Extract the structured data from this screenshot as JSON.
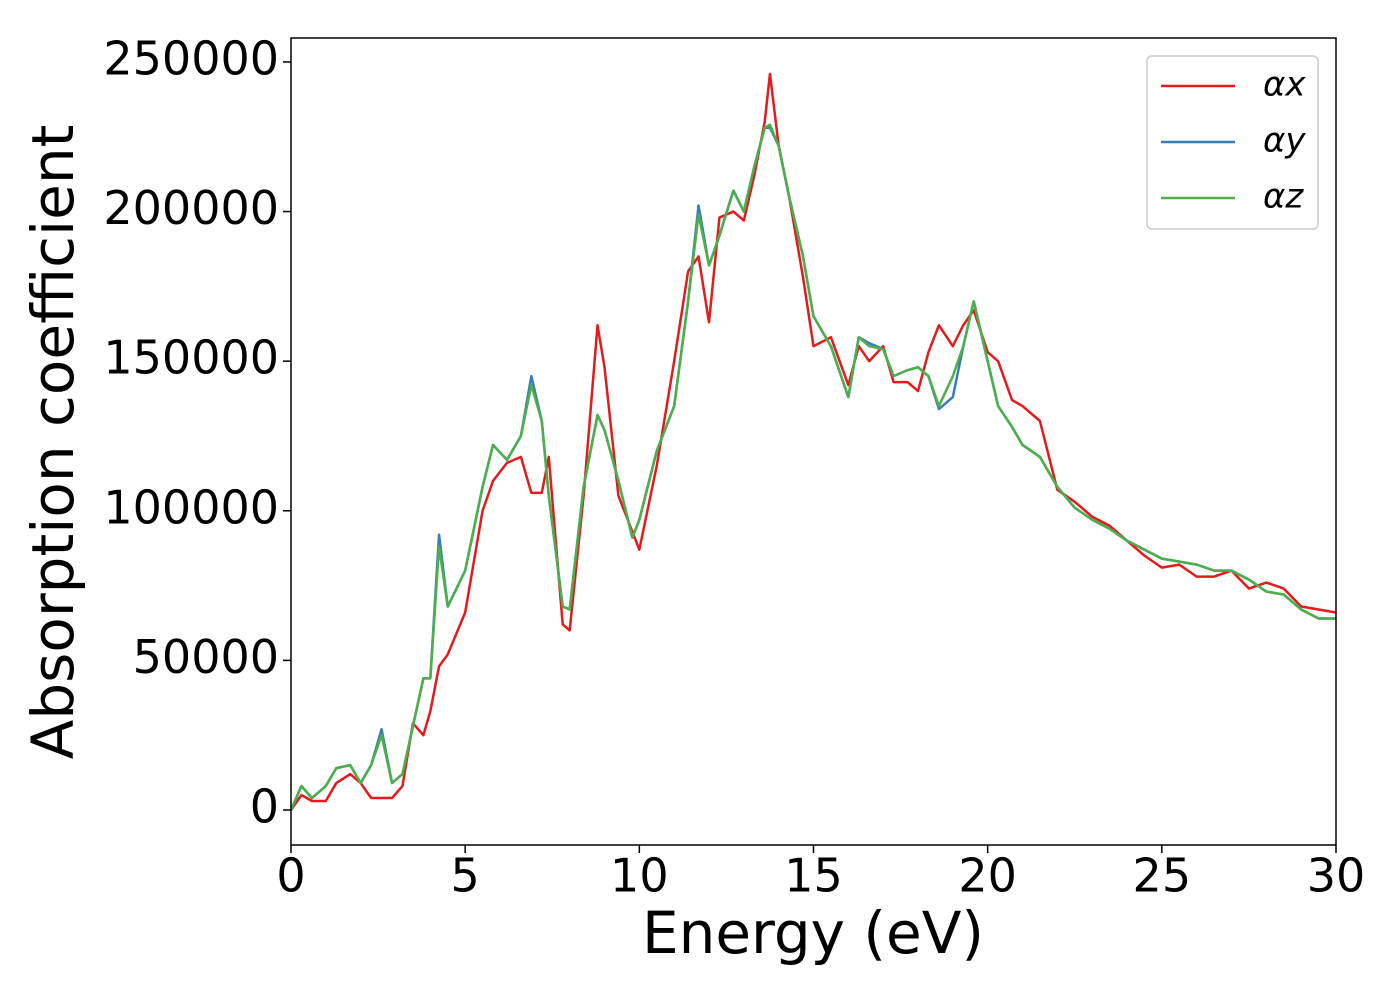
{
  "chart_data": {
    "type": "line",
    "xlabel": "Energy (eV)",
    "ylabel": "Absorption coefficient",
    "x": [
      0,
      0.3,
      0.6,
      1.0,
      1.3,
      1.7,
      2.0,
      2.3,
      2.6,
      2.9,
      3.2,
      3.5,
      3.8,
      4.0,
      4.25,
      4.5,
      5.0,
      5.5,
      5.8,
      6.2,
      6.6,
      6.9,
      7.2,
      7.4,
      7.8,
      8.0,
      8.4,
      8.8,
      9.0,
      9.4,
      9.8,
      10.0,
      10.5,
      11.0,
      11.4,
      11.7,
      12.0,
      12.3,
      12.7,
      13.0,
      13.3,
      13.6,
      13.75,
      14.0,
      14.3,
      14.7,
      15.0,
      15.5,
      16.0,
      16.3,
      16.6,
      17.0,
      17.3,
      17.7,
      18.0,
      18.3,
      18.6,
      19.0,
      19.3,
      19.6,
      20.0,
      20.3,
      20.7,
      21.0,
      21.5,
      22.0,
      22.5,
      23.0,
      23.5,
      24.0,
      24.5,
      25.0,
      25.5,
      26.0,
      26.5,
      27.0,
      27.5,
      28.0,
      28.5,
      29.0,
      29.5,
      30.0
    ],
    "series": [
      {
        "name": "αx",
        "color": "#e41a1c",
        "values": [
          0,
          5000,
          3000,
          3000,
          9000,
          12000,
          9000,
          4000,
          4000,
          4000,
          8000,
          29000,
          25000,
          33000,
          48000,
          52000,
          66000,
          100000,
          110000,
          116000,
          118000,
          106000,
          106000,
          118000,
          62000,
          60000,
          105000,
          162000,
          148000,
          105000,
          93000,
          87000,
          115000,
          150000,
          180000,
          185000,
          163000,
          198000,
          200000,
          197000,
          212000,
          230000,
          246000,
          222000,
          205000,
          178000,
          155000,
          158000,
          142000,
          155000,
          150000,
          155000,
          143000,
          143000,
          140000,
          153000,
          162000,
          155000,
          162000,
          167000,
          153000,
          150000,
          137000,
          135000,
          130000,
          107000,
          103000,
          98000,
          95000,
          90000,
          85000,
          81000,
          82000,
          78000,
          78000,
          80000,
          74000,
          76000,
          74000,
          68000,
          67000,
          66000
        ]
      },
      {
        "name": "αy",
        "color": "#377eb8",
        "values": [
          0,
          8000,
          4000,
          8000,
          14000,
          15000,
          9000,
          15000,
          27000,
          9000,
          12000,
          28000,
          44000,
          44000,
          92000,
          68000,
          80000,
          108000,
          122000,
          117000,
          125000,
          145000,
          130000,
          105000,
          68000,
          67000,
          108000,
          132000,
          127000,
          110000,
          91000,
          97000,
          120000,
          135000,
          170000,
          202000,
          182000,
          192000,
          207000,
          200000,
          215000,
          228000,
          228000,
          222000,
          205000,
          185000,
          165000,
          155000,
          138000,
          158000,
          156000,
          154000,
          145000,
          147000,
          148000,
          145000,
          134000,
          138000,
          155000,
          170000,
          150000,
          135000,
          128000,
          122000,
          118000,
          108000,
          101000,
          97000,
          94000,
          90000,
          87000,
          84000,
          83000,
          82000,
          80000,
          80000,
          77000,
          73000,
          72000,
          67000,
          64000,
          64000
        ]
      },
      {
        "name": "αz",
        "color": "#4daf4a",
        "values": [
          0,
          8000,
          4000,
          8000,
          14000,
          15000,
          9000,
          15000,
          25000,
          9000,
          12000,
          28000,
          44000,
          44000,
          88000,
          68000,
          80000,
          108000,
          122000,
          117000,
          125000,
          142000,
          130000,
          105000,
          68000,
          67000,
          108000,
          132000,
          127000,
          110000,
          91000,
          97000,
          120000,
          135000,
          170000,
          199000,
          182000,
          192000,
          207000,
          200000,
          215000,
          228000,
          229000,
          222000,
          205000,
          185000,
          165000,
          155000,
          138000,
          158000,
          155000,
          154000,
          145000,
          147000,
          148000,
          145000,
          135000,
          145000,
          155000,
          170000,
          150000,
          135000,
          128000,
          122000,
          118000,
          108000,
          101000,
          97000,
          94000,
          90000,
          87000,
          84000,
          83000,
          82000,
          80000,
          80000,
          77000,
          73000,
          72000,
          67000,
          64000,
          64000
        ]
      }
    ],
    "xlim": [
      0,
      30
    ],
    "xticks": [
      0,
      5,
      10,
      15,
      20,
      25,
      30
    ],
    "ylim": [
      -11700,
      258000
    ],
    "yticks": [
      0,
      50000,
      100000,
      150000,
      200000,
      250000
    ],
    "legend": "upper right"
  }
}
